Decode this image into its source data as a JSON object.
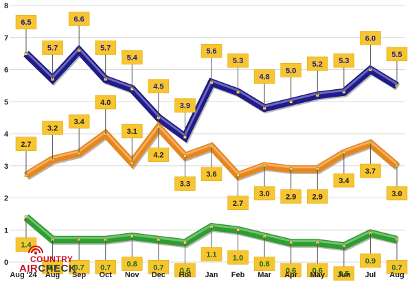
{
  "chart_data": {
    "type": "line",
    "title": "",
    "xlabel": "",
    "ylabel": "",
    "ylim": [
      0,
      8
    ],
    "yticks": [
      "0",
      "1",
      "2",
      "3",
      "4",
      "5",
      "6",
      "7",
      "8"
    ],
    "grid": true,
    "categories": [
      "Aug '24",
      "Aug",
      "Sep",
      "Oct",
      "Nov",
      "Dec",
      "Hol",
      "Jan",
      "Feb",
      "Mar",
      "Apr",
      "May",
      "Jun",
      "Jul",
      "Aug"
    ],
    "series": [
      {
        "values": [
          6.5,
          5.7,
          6.6,
          5.7,
          5.4,
          4.5,
          3.9,
          5.6,
          5.3,
          4.8,
          5.0,
          5.2,
          5.3,
          6.0,
          5.5
        ],
        "labels": [
          "6.5",
          "5.7",
          "6.6",
          "5.7",
          "5.4",
          "4.5",
          "3.9",
          "5.6",
          "5.3",
          "4.8",
          "5.0",
          "5.2",
          "5.3",
          "6.0",
          "5.5"
        ],
        "label_pos": [
          "above",
          "above",
          "above",
          "above",
          "above",
          "above",
          "above",
          "above",
          "above",
          "above",
          "above",
          "above",
          "above",
          "above",
          "above"
        ],
        "color": "#1f1b8c",
        "label_color": "#1f1b8c"
      },
      {
        "values": [
          2.7,
          3.2,
          3.4,
          4.0,
          3.1,
          4.2,
          3.3,
          3.6,
          2.7,
          3.0,
          2.9,
          2.9,
          3.4,
          3.7,
          3.0
        ],
        "labels": [
          "2.7",
          "3.2",
          "3.4",
          "4.0",
          "3.1",
          "4.2",
          "3.3",
          "3.6",
          "2.7",
          "3.0",
          "2.9",
          "2.9",
          "3.4",
          "3.7",
          "3.0"
        ],
        "label_pos": [
          "above",
          "above",
          "above",
          "above",
          "above",
          "below",
          "below",
          "below",
          "below",
          "below",
          "below",
          "below",
          "below",
          "below",
          "below"
        ],
        "color": "#e8861a",
        "label_color": "#222222"
      },
      {
        "values": [
          1.4,
          0.7,
          0.7,
          0.7,
          0.8,
          0.7,
          0.6,
          1.1,
          1.0,
          0.8,
          0.6,
          0.6,
          0.5,
          0.9,
          0.7
        ],
        "labels": [
          "1.4",
          "0.7",
          "0.7",
          "0.7",
          "0.8",
          "0.7",
          "0.6",
          "1.1",
          "1.0",
          "0.8",
          "0.6",
          "0.6",
          "0.5",
          "0.9",
          "0.7"
        ],
        "label_pos": [
          "below",
          "below",
          "below",
          "below",
          "below",
          "below",
          "below",
          "below",
          "below",
          "below",
          "below",
          "below",
          "below",
          "below",
          "below"
        ],
        "color": "#2e9e2e",
        "label_color": "#1a6a1a"
      }
    ],
    "label_box_color": "#f6c531",
    "grid_color": "#d8d8d8"
  },
  "logo": {
    "top": "COUNTRY",
    "main_left": "AIR",
    "main_right": "CHECK"
  }
}
